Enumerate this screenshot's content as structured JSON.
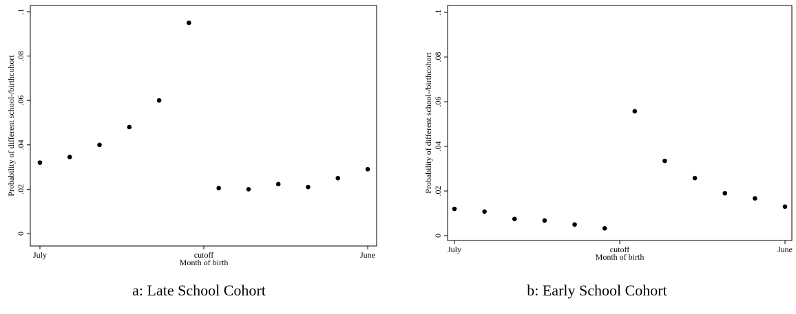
{
  "chart_data": [
    {
      "type": "scatter",
      "caption": "a: Late School Cohort",
      "xlabel": "Month of birth",
      "ylabel": "Probability of different school-/birthcohort",
      "x_tick_labels": [
        "July",
        "cutoff",
        "June"
      ],
      "y_ticks": [
        "0",
        ".02",
        ".04",
        ".06",
        ".08",
        ".1"
      ],
      "ylim": [
        0,
        0.1
      ],
      "grid": false,
      "x": [
        1,
        2,
        3,
        4,
        5,
        6,
        7,
        8,
        9,
        10,
        11,
        12
      ],
      "values": [
        0.032,
        0.0345,
        0.04,
        0.048,
        0.06,
        0.095,
        0.0205,
        0.02,
        0.0223,
        0.021,
        0.025,
        0.029
      ]
    },
    {
      "type": "scatter",
      "caption": "b: Early School Cohort",
      "xlabel": "Month of birth",
      "ylabel": "Probability of different school-/birthcohort",
      "x_tick_labels": [
        "July",
        "cutoff",
        "June"
      ],
      "y_ticks": [
        "0",
        ".02",
        ".04",
        ".06",
        ".08",
        ".1"
      ],
      "ylim": [
        0,
        0.1
      ],
      "grid": false,
      "x": [
        1,
        2,
        3,
        4,
        5,
        6,
        7,
        8,
        9,
        10,
        11,
        12
      ],
      "values": [
        0.012,
        0.0108,
        0.0075,
        0.0068,
        0.005,
        0.0033,
        0.0557,
        0.0335,
        0.0258,
        0.019,
        0.0167,
        0.013
      ]
    }
  ]
}
